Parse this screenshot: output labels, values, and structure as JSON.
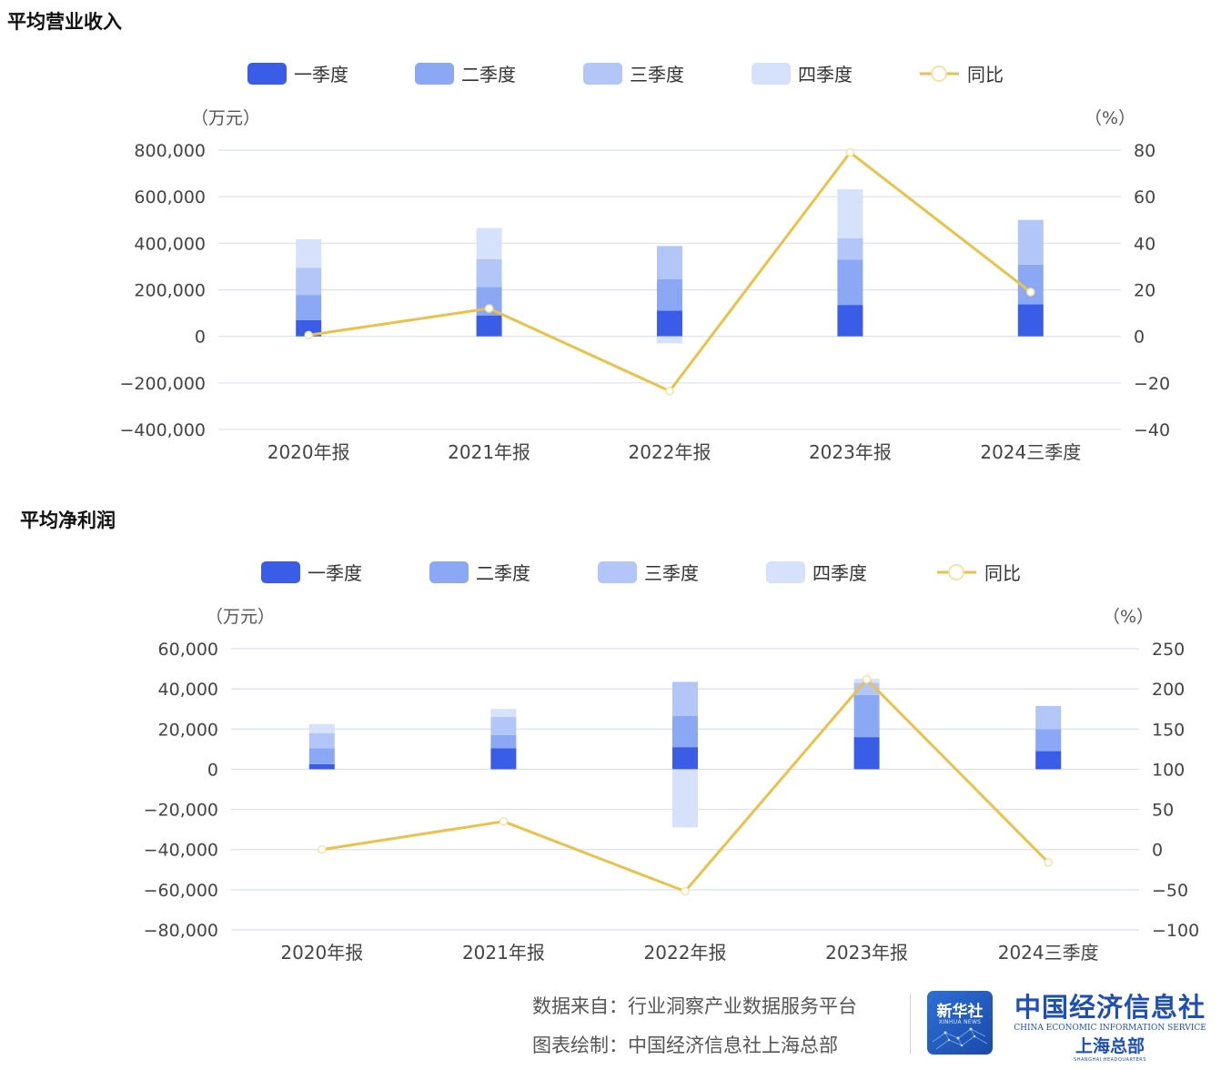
{
  "chart_data": [
    {
      "type": "bar",
      "title": "平均营业收入",
      "categories": [
        "2020年报",
        "2021年报",
        "2022年报",
        "2023年报",
        "2024三季度"
      ],
      "series": [
        {
          "name": "一季度",
          "values": [
            70000,
            90000,
            110000,
            135000,
            138000
          ],
          "color": "#3a5de8"
        },
        {
          "name": "二季度",
          "values": [
            108000,
            122000,
            135000,
            195000,
            170000
          ],
          "color": "#8aa8f4"
        },
        {
          "name": "三季度",
          "values": [
            117000,
            120000,
            143000,
            92000,
            192000
          ],
          "color": "#b3c6f8"
        },
        {
          "name": "四季度",
          "values": [
            122000,
            133000,
            -30000,
            210000,
            0
          ],
          "color": "#d6e1fb"
        }
      ],
      "line": {
        "name": "同比",
        "values": [
          0.5,
          12,
          -23.5,
          79,
          19
        ],
        "color": "#e8c24a"
      },
      "left_axis": {
        "label": "（万元）",
        "min": -400000,
        "max": 800000,
        "step": 200000,
        "ticks": [
          "−400,000",
          "−200,000",
          "0",
          "200,000",
          "400,000",
          "600,000",
          "800,000"
        ]
      },
      "right_axis": {
        "label": "（%）",
        "min": -40,
        "max": 80,
        "step": 20,
        "ticks": [
          "−40",
          "−20",
          "0",
          "20",
          "40",
          "60",
          "80"
        ]
      },
      "grid": true,
      "legend_position": "top"
    },
    {
      "type": "bar",
      "title": "平均净利润",
      "categories": [
        "2020年报",
        "2021年报",
        "2022年报",
        "2023年报",
        "2024三季度"
      ],
      "series": [
        {
          "name": "一季度",
          "values": [
            2500,
            10500,
            11000,
            16000,
            9000
          ],
          "color": "#3a5de8"
        },
        {
          "name": "二季度",
          "values": [
            8000,
            6500,
            15500,
            21000,
            11000
          ],
          "color": "#8aa8f4"
        },
        {
          "name": "三季度",
          "values": [
            7500,
            9000,
            17000,
            6000,
            11500
          ],
          "color": "#b3c6f8"
        },
        {
          "name": "四季度",
          "values": [
            4500,
            4000,
            -29000,
            2000,
            0
          ],
          "color": "#d6e1fb"
        }
      ],
      "line": {
        "name": "同比",
        "values": [
          0,
          35,
          -52,
          212,
          -16
        ],
        "color": "#e8c24a"
      },
      "left_axis": {
        "label": "（万元）",
        "min": -80000,
        "max": 60000,
        "step": 20000,
        "ticks": [
          "−80,000",
          "−60,000",
          "−40,000",
          "−20,000",
          "0",
          "20,000",
          "40,000",
          "60,000"
        ]
      },
      "right_axis": {
        "label": "（%）",
        "min": -100,
        "max": 250,
        "step": 50,
        "ticks": [
          "−100",
          "−50",
          "0",
          "50",
          "100",
          "150",
          "200",
          "250"
        ]
      },
      "grid": true,
      "legend_position": "top"
    }
  ],
  "footer": {
    "source": "数据来自：行业洞察产业数据服务平台",
    "author": "图表绘制：中国经济信息社上海总部",
    "logo_xinhua_cn": "新华社",
    "logo_xinhua_en": "XINHUA NEWS",
    "logo_cei_cn": "中国经济信息社",
    "logo_cei_en": "CHINA ECONOMIC INFORMATION SERVICE",
    "logo_cei_sub": "上海总部",
    "logo_cei_sub_en": "SHANGHAI HEADQUARTERS"
  }
}
